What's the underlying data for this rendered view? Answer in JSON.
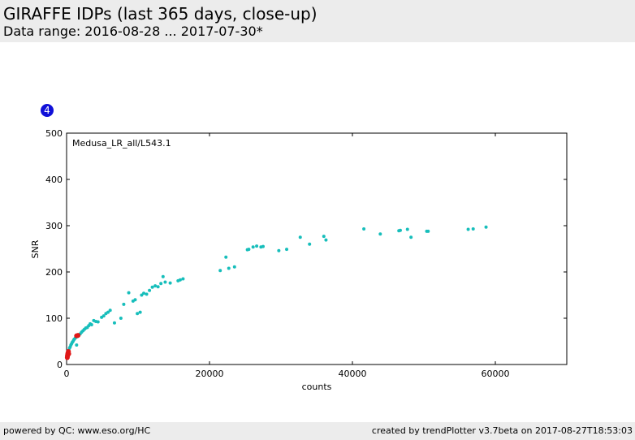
{
  "header": {
    "title": "GIRAFFE IDPs (last 365 days, close-up)",
    "subtitle": "Data range: 2016-08-28 ... 2017-07-30*"
  },
  "badge": {
    "label": "4",
    "color": "#1010d8"
  },
  "footer": {
    "left": "powered by QC: www.eso.org/HC",
    "right": "created by trendPlotter v3.7beta on 2017-08-27T18:53:03"
  },
  "chart_data": {
    "type": "scatter",
    "title": "",
    "annotation": "Medusa_LR_all/L543.1",
    "xlabel": "counts",
    "ylabel": "SNR",
    "xlim": [
      0,
      70000
    ],
    "ylim": [
      0,
      500
    ],
    "x_ticks": [
      0,
      20000,
      40000,
      60000
    ],
    "y_ticks": [
      0,
      100,
      200,
      300,
      400,
      500
    ],
    "grid": false,
    "legend": "none",
    "series": [
      {
        "color": "#17bebb",
        "points": [
          [
            200,
            26
          ],
          [
            300,
            30
          ],
          [
            400,
            35
          ],
          [
            500,
            38
          ],
          [
            600,
            42
          ],
          [
            700,
            45
          ],
          [
            800,
            48
          ],
          [
            900,
            50
          ],
          [
            1000,
            53
          ],
          [
            1100,
            55
          ],
          [
            1250,
            58
          ],
          [
            1400,
            42
          ],
          [
            1500,
            60
          ],
          [
            1700,
            63
          ],
          [
            1900,
            66
          ],
          [
            2100,
            70
          ],
          [
            2300,
            73
          ],
          [
            2500,
            76
          ],
          [
            2700,
            79
          ],
          [
            2900,
            80
          ],
          [
            3100,
            84
          ],
          [
            3300,
            88
          ],
          [
            3500,
            86
          ],
          [
            3800,
            95
          ],
          [
            4100,
            93
          ],
          [
            4400,
            92
          ],
          [
            4900,
            102
          ],
          [
            5200,
            105
          ],
          [
            5500,
            110
          ],
          [
            5800,
            113
          ],
          [
            6100,
            117
          ],
          [
            6700,
            90
          ],
          [
            7600,
            100
          ],
          [
            8000,
            130
          ],
          [
            8700,
            155
          ],
          [
            9300,
            137
          ],
          [
            9600,
            140
          ],
          [
            9900,
            110
          ],
          [
            10300,
            113
          ],
          [
            10500,
            150
          ],
          [
            10800,
            154
          ],
          [
            11200,
            152
          ],
          [
            11600,
            160
          ],
          [
            12000,
            167
          ],
          [
            12400,
            170
          ],
          [
            12800,
            168
          ],
          [
            13200,
            175
          ],
          [
            13500,
            190
          ],
          [
            13800,
            178
          ],
          [
            14500,
            176
          ],
          [
            15600,
            181
          ],
          [
            15900,
            183
          ],
          [
            16300,
            185
          ],
          [
            21500,
            203
          ],
          [
            22300,
            232
          ],
          [
            22700,
            208
          ],
          [
            23500,
            211
          ],
          [
            25300,
            248
          ],
          [
            25500,
            249
          ],
          [
            26100,
            254
          ],
          [
            26600,
            256
          ],
          [
            27200,
            254
          ],
          [
            27500,
            255
          ],
          [
            29700,
            246
          ],
          [
            30800,
            249
          ],
          [
            32700,
            275
          ],
          [
            34000,
            260
          ],
          [
            36000,
            277
          ],
          [
            36300,
            269
          ],
          [
            41600,
            293
          ],
          [
            43900,
            282
          ],
          [
            46500,
            289
          ],
          [
            46700,
            290
          ],
          [
            47700,
            292
          ],
          [
            48200,
            275
          ],
          [
            50400,
            288
          ],
          [
            50600,
            288
          ],
          [
            56200,
            292
          ],
          [
            56900,
            293
          ],
          [
            58700,
            297
          ]
        ]
      },
      {
        "color": "#e01818",
        "points": [
          [
            100,
            15
          ],
          [
            120,
            18
          ],
          [
            140,
            20
          ],
          [
            160,
            22
          ],
          [
            180,
            24
          ],
          [
            200,
            21
          ],
          [
            220,
            26
          ],
          [
            240,
            25
          ],
          [
            260,
            28
          ],
          [
            300,
            23
          ],
          [
            1400,
            62
          ],
          [
            1600,
            63
          ]
        ]
      }
    ]
  }
}
